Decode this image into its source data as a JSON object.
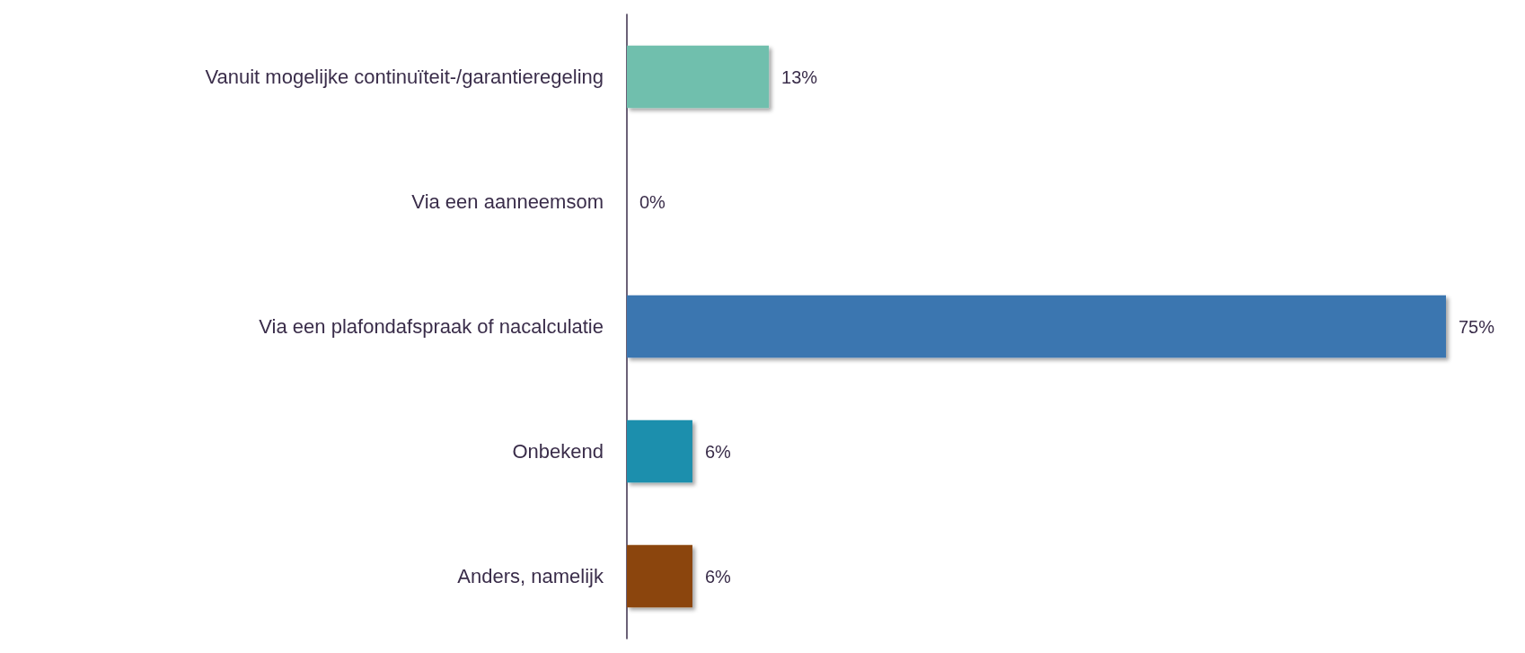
{
  "chart_data": {
    "type": "bar",
    "orientation": "horizontal",
    "categories": [
      "Vanuit mogelijke continuïteit-/garantieregeling",
      "Via een aanneemsom",
      "Via een plafondafspraak of nacalculatie",
      "Onbekend",
      "Anders, namelijk"
    ],
    "values": [
      13,
      0,
      75,
      6,
      6
    ],
    "colors": [
      "#6fbfad",
      null,
      "#3b76b0",
      "#1f8fad",
      "#8b4409"
    ],
    "value_labels": [
      "13%",
      "0%",
      "75%",
      "6%",
      "6%"
    ]
  }
}
